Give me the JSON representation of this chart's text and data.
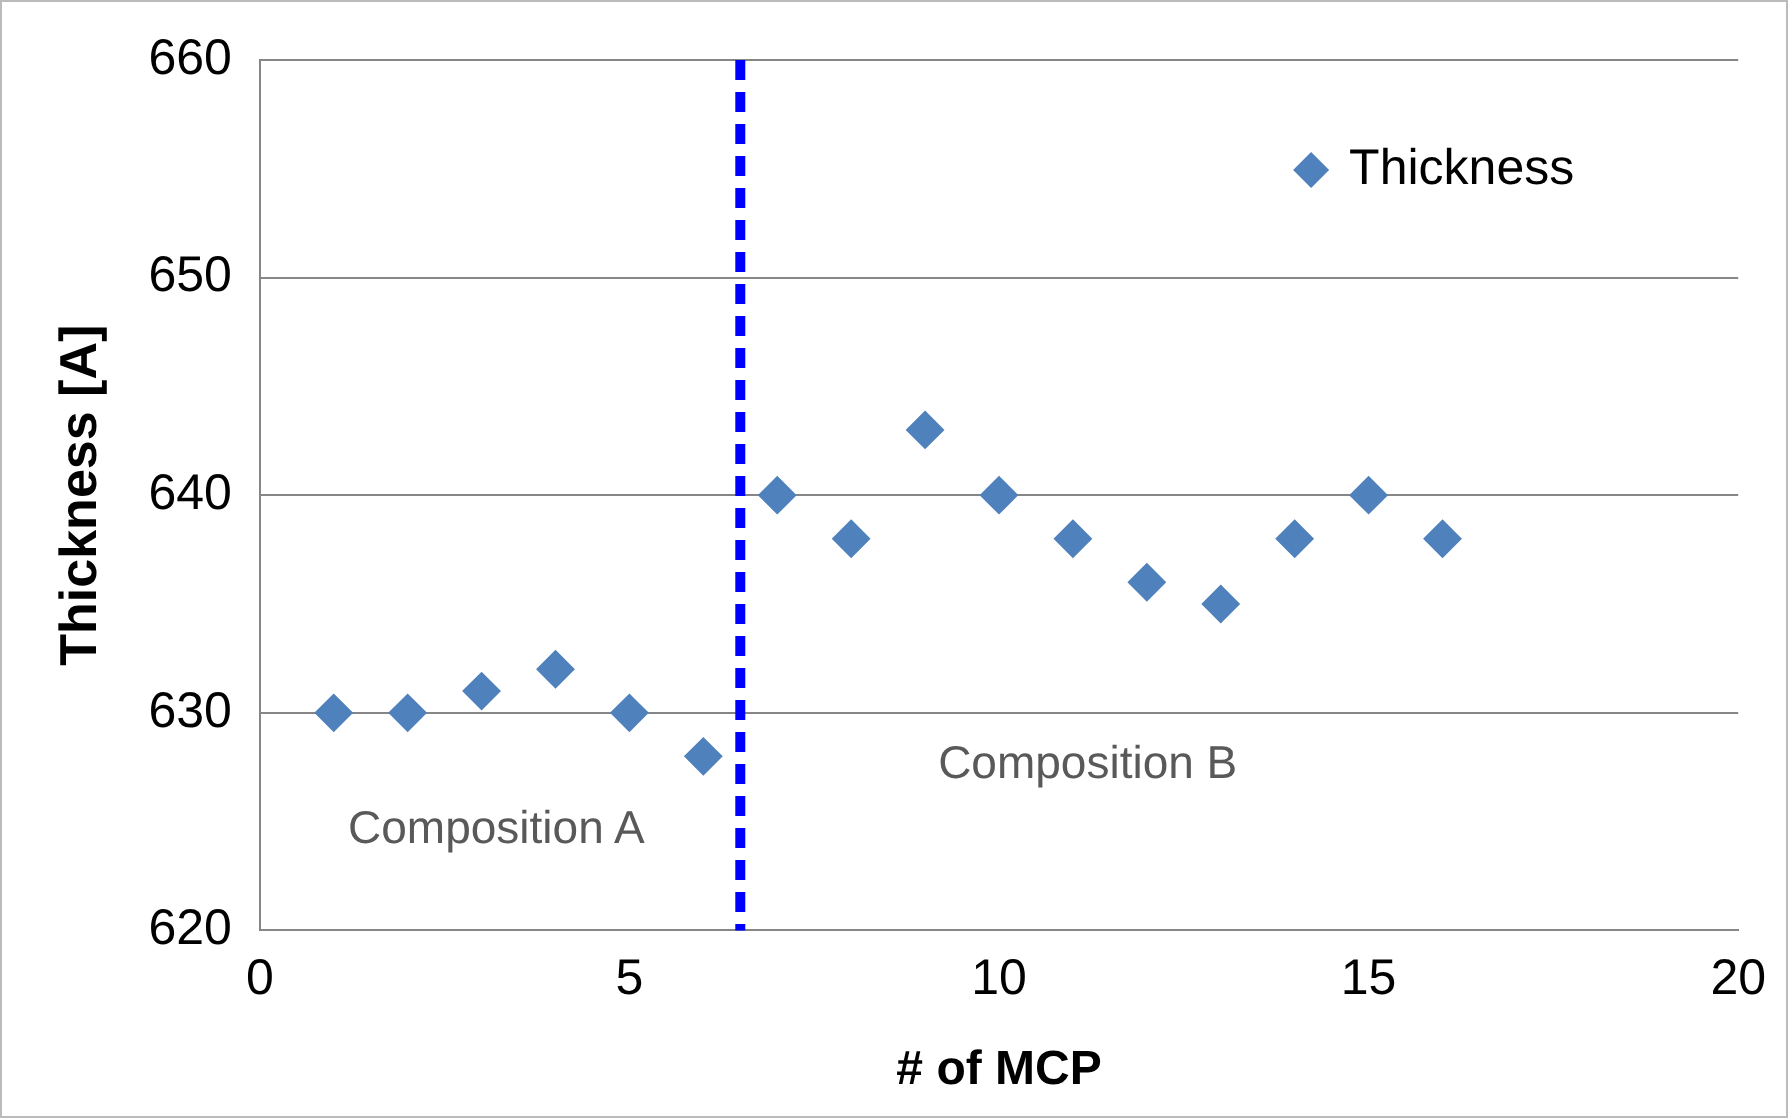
{
  "chart_data": {
    "type": "scatter",
    "xlabel": "# of MCP",
    "ylabel": "Thickness [A]",
    "x": [
      1,
      2,
      3,
      4,
      5,
      6,
      7,
      8,
      9,
      10,
      11,
      12,
      13,
      14,
      15,
      16
    ],
    "series": [
      {
        "name": "Thickness",
        "color": "#4f81bd",
        "values": [
          630,
          630,
          631,
          632,
          630,
          628,
          640,
          638,
          643,
          640,
          638,
          636,
          635,
          638,
          640,
          638
        ]
      }
    ],
    "xlim": [
      0,
      20
    ],
    "xticks": [
      0,
      5,
      10,
      15,
      20
    ],
    "ylim": [
      620,
      660
    ],
    "yticks": [
      620,
      630,
      640,
      650,
      660
    ],
    "grid": "y",
    "legend": "top right",
    "marker": "diamond",
    "ref_lines": [
      {
        "axis": "x",
        "value": 6.5,
        "color": "#0000ff",
        "line_style": "dashed"
      }
    ],
    "annotations": [
      "Composition A",
      "Composition B"
    ]
  }
}
